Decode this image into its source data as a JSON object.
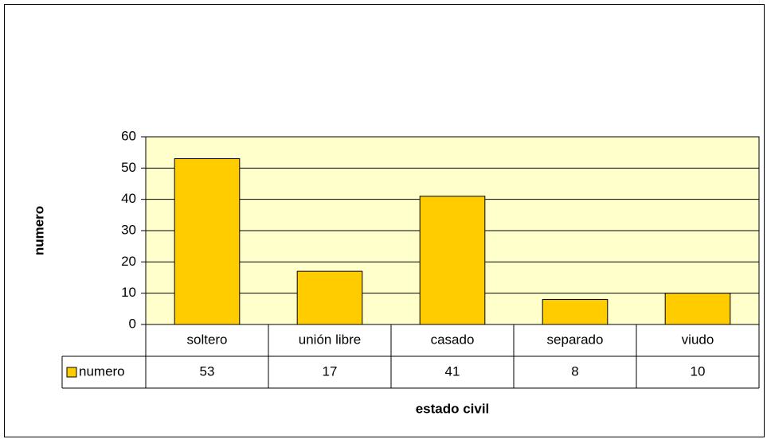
{
  "chart_data": {
    "type": "bar",
    "x_label": "estado civil",
    "y_label": "numero",
    "categories": [
      "soltero",
      "unión libre",
      "casado",
      "separado",
      "viudo"
    ],
    "series": [
      {
        "name": "numero",
        "color": "#ffcc00",
        "values": [
          53,
          17,
          41,
          8,
          10
        ]
      }
    ],
    "ylim": [
      0,
      60
    ],
    "yticks": [
      0,
      10,
      20,
      30,
      40,
      50,
      60
    ],
    "grid": true,
    "plot_background": "#ffffcc"
  }
}
